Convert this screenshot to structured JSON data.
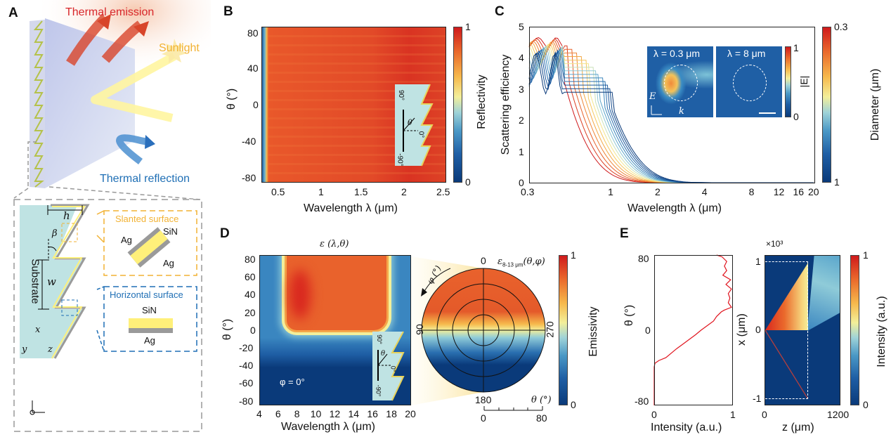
{
  "panels": {
    "a": {
      "label": "A",
      "thermal_emission": "Thermal emission",
      "sunlight": "Sunlight",
      "thermal_reflection": "Thermal reflection",
      "inset": {
        "h": "h",
        "beta": "β",
        "w": "w",
        "substrate": "Substrate",
        "slanted_title": "Slanted surface",
        "slanted_sin": "SiN",
        "slanted_ag1": "Ag",
        "slanted_ag2": "Ag",
        "horizontal_title": "Horizontal surface",
        "horizontal_sin": "SiN",
        "horizontal_ag": "Ag",
        "axis_x": "x",
        "axis_y": "y",
        "axis_z": "z"
      },
      "colors": {
        "emission": "#d8452a",
        "sunlight": "#f2b233",
        "reflection": "#1f6fb5",
        "substrate": "#bfe3e3",
        "sin": "#fff07a",
        "ag": "#9a9a9a"
      }
    },
    "b": {
      "label": "B",
      "ylabel": "θ (°)",
      "xlabel": "Wavelength λ (μm)",
      "yticks": [
        "80",
        "40",
        "0",
        "-40",
        "-80"
      ],
      "xticks": [
        "0.5",
        "1",
        "1.5",
        "2",
        "2.5"
      ],
      "colorbar": {
        "label": "Reflectivity",
        "max": "1",
        "min": "0"
      },
      "inset": {
        "top": "90°",
        "zero": "0°",
        "bottom": "-90°",
        "theta": "θ"
      }
    },
    "c": {
      "label": "C",
      "ylabel": "Scattering efficiency",
      "xlabel": "Wavelength λ (μm)",
      "yticks": [
        "5",
        "4",
        "3",
        "2",
        "1",
        "0"
      ],
      "xticks": [
        "0.3",
        "1",
        "2",
        "4",
        "8",
        "12",
        "16",
        "20"
      ],
      "colorbar": {
        "label": "Diameter (μm)",
        "top": "0.3",
        "bottom": "1"
      },
      "inset1_title": "λ = 0.3 μm",
      "inset2_title": "λ = 8 μm",
      "inset_E": "E",
      "inset_k": "k",
      "inset_colorbar": {
        "label": "|E|",
        "max": "1",
        "min": "0"
      }
    },
    "d": {
      "label": "D",
      "map_title": "ε (λ,θ)",
      "ylabel": "θ (°)",
      "xlabel": "Wavelength λ (μm)",
      "yticks": [
        "80",
        "60",
        "40",
        "20",
        "0",
        "-20",
        "-40",
        "-60",
        "-80"
      ],
      "xticks": [
        "4",
        "6",
        "8",
        "10",
        "12",
        "14",
        "16",
        "18",
        "20"
      ],
      "phi_note": "φ = 0°",
      "inset": {
        "top": "90°",
        "zero": "0°",
        "bottom": "-90°",
        "theta": "θ"
      },
      "polar_title": "ε",
      "polar_title_sub": "8-13 μm",
      "polar_title_args": "(θ,φ)",
      "polar_phi_label": "φ (°)",
      "polar_angles": {
        "top": "0",
        "left": "90",
        "right": "270",
        "bottom": "180"
      },
      "polar_theta_label": "θ (°)",
      "polar_theta_ticks": [
        "0",
        "80"
      ],
      "colorbar": {
        "label": "Emissivity",
        "max": "1",
        "min": "0"
      }
    },
    "e": {
      "label": "E",
      "left": {
        "ylabel": "θ (°)",
        "xlabel": "Intensity (a.u.)",
        "yticks": [
          "80",
          "0",
          "-80"
        ],
        "xticks": [
          "0",
          "1"
        ]
      },
      "right": {
        "multiplier": "×10³",
        "ylabel": "x (μm)",
        "xlabel": "z (μm)",
        "yticks": [
          "1",
          "0",
          "-1"
        ],
        "xticks": [
          "0",
          "1200"
        ]
      },
      "colorbar": {
        "label": "Intensity (a.u.)",
        "max": "1",
        "min": "0"
      }
    }
  },
  "chart_data": [
    {
      "panel": "B",
      "type": "heatmap",
      "xlabel": "Wavelength λ (μm)",
      "ylabel": "θ (°)",
      "xlim": [
        0.28,
        2.5
      ],
      "ylim": [
        -85,
        85
      ],
      "colorbar": "Reflectivity",
      "clim": [
        0,
        1
      ],
      "description_values": {
        "reflectivity_below_0.35um": 0.2,
        "reflectivity_above_0.4um": 0.95
      }
    },
    {
      "panel": "C",
      "type": "line",
      "xlabel": "Wavelength λ (μm)",
      "ylabel": "Scattering efficiency",
      "xscale": "log",
      "xlim": [
        0.3,
        20
      ],
      "ylim": [
        0,
        5
      ],
      "colorbar": "Diameter (μm)",
      "diameter_range": [
        0.3,
        1
      ],
      "series_diameters": [
        0.3,
        0.35,
        0.4,
        0.45,
        0.5,
        0.55,
        0.6,
        0.65,
        0.7,
        0.75,
        0.8,
        0.85,
        0.9,
        0.95,
        1.0
      ]
    },
    {
      "panel": "D-left",
      "type": "heatmap",
      "xlabel": "Wavelength λ (μm)",
      "ylabel": "θ (°)",
      "xlim": [
        4,
        20
      ],
      "ylim": [
        -85,
        85
      ],
      "colorbar": "Emissivity",
      "clim": [
        0,
        1
      ],
      "high_emissivity_region": {
        "wavelength": [
          7,
          17.5
        ],
        "theta": [
          15,
          85
        ],
        "value": 0.85
      }
    },
    {
      "panel": "D-right",
      "type": "heatmap",
      "projection": "polar",
      "theta_range": [
        0,
        80
      ],
      "phi_ticks": [
        0,
        90,
        180,
        270
      ],
      "upper_half_emissivity": 0.85,
      "lower_half_emissivity": 0.1
    },
    {
      "panel": "E-left",
      "type": "line",
      "xlabel": "Intensity (a.u.)",
      "ylabel": "θ (°)",
      "xlim": [
        0,
        1
      ],
      "ylim": [
        -82,
        82
      ],
      "theta": [
        -82,
        -60,
        -40,
        -36,
        -33,
        -30,
        -25,
        -20,
        -15,
        -10,
        -5,
        0,
        5,
        10,
        15,
        20,
        22,
        25,
        30,
        35,
        40,
        45,
        50,
        55,
        60,
        65,
        70,
        75,
        80,
        82
      ],
      "intensity": [
        0.0,
        0.0,
        0.0,
        0.01,
        0.06,
        0.15,
        0.22,
        0.29,
        0.37,
        0.45,
        0.53,
        0.6,
        0.68,
        0.76,
        0.8,
        0.86,
        0.9,
        0.99,
        0.95,
        0.97,
        0.95,
        0.99,
        0.92,
        0.98,
        0.88,
        0.93,
        0.9,
        0.93,
        0.87,
        0.8
      ]
    },
    {
      "panel": "E-right",
      "type": "heatmap",
      "xlabel": "z (μm)",
      "ylabel": "x (μm)",
      "xlim": [
        0,
        1200
      ],
      "ylim": [
        -1050,
        1050
      ],
      "colorbar": "Intensity (a.u.)",
      "clim": [
        0,
        1
      ]
    }
  ]
}
